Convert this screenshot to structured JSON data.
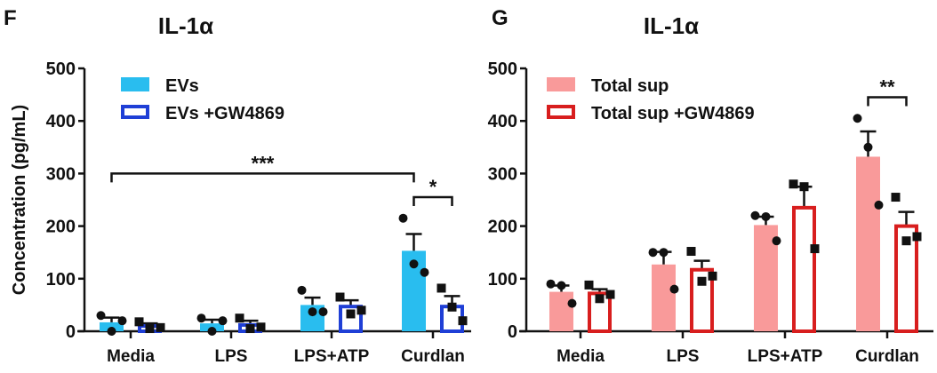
{
  "chart_data": [
    {
      "type": "bar",
      "panel_letter": "F",
      "title": "IL-1α",
      "ylabel": "Concentration (pg/mL)",
      "xlabel": "",
      "ylim": [
        0,
        500
      ],
      "yticks": [
        "0",
        "100",
        "200",
        "300",
        "400",
        "500"
      ],
      "categories": [
        "Media",
        "LPS",
        "LPS+ATP",
        "Curdlan"
      ],
      "legend_position": "top-left",
      "grid": false,
      "series": [
        {
          "name": "EVs",
          "style": "filled",
          "color": "#29bdef",
          "marker": "circle",
          "values": [
            17,
            15,
            50,
            153
          ],
          "errors": [
            9,
            7,
            14,
            32
          ],
          "points": [
            [
              30,
              0,
              20
            ],
            [
              25,
              0,
              20
            ],
            [
              78,
              37,
              37
            ],
            [
              215,
              128,
              112
            ]
          ]
        },
        {
          "name": "EVs +GW4869",
          "style": "outline",
          "color": "#1f3fd6",
          "marker": "square",
          "values": [
            10,
            12,
            47,
            47
          ],
          "errors": [
            5,
            8,
            12,
            20
          ],
          "points": [
            [
              18,
              5,
              7
            ],
            [
              25,
              5,
              8
            ],
            [
              65,
              33,
              40
            ],
            [
              82,
              46,
              20
            ]
          ]
        }
      ],
      "significance": [
        {
          "label": "***",
          "from": [
            0,
            0
          ],
          "to": [
            3,
            0
          ],
          "y": 300
        },
        {
          "label": "*",
          "from": [
            3,
            0
          ],
          "to": [
            3,
            1
          ],
          "y": 255
        }
      ]
    },
    {
      "type": "bar",
      "panel_letter": "G",
      "title": "IL-1α",
      "ylabel": "",
      "xlabel": "",
      "ylim": [
        0,
        500
      ],
      "yticks": [
        "0",
        "100",
        "200",
        "300",
        "400",
        "500"
      ],
      "categories": [
        "Media",
        "LPS",
        "LPS+ATP",
        "Curdlan"
      ],
      "legend_position": "top-left",
      "grid": false,
      "series": [
        {
          "name": "Total sup",
          "style": "filled",
          "color": "#f99a9a",
          "marker": "circle",
          "values": [
            75,
            127,
            202,
            332
          ],
          "errors": [
            12,
            24,
            16,
            48
          ],
          "points": [
            [
              90,
              87,
              53
            ],
            [
              150,
              150,
              80
            ],
            [
              220,
              218,
              172
            ],
            [
              405,
              350,
              240
            ]
          ]
        },
        {
          "name": "Total sup +GW4869",
          "style": "outline",
          "color": "#d81e1e",
          "marker": "square",
          "values": [
            72,
            117,
            235,
            200
          ],
          "errors": [
            8,
            17,
            40,
            27
          ],
          "points": [
            [
              88,
              62,
              70
            ],
            [
              152,
              95,
              105
            ],
            [
              280,
              275,
              157
            ],
            [
              255,
              172,
              180
            ]
          ]
        }
      ],
      "significance": [
        {
          "label": "**",
          "from": [
            3,
            0
          ],
          "to": [
            3,
            1
          ],
          "y": 445
        }
      ]
    }
  ]
}
